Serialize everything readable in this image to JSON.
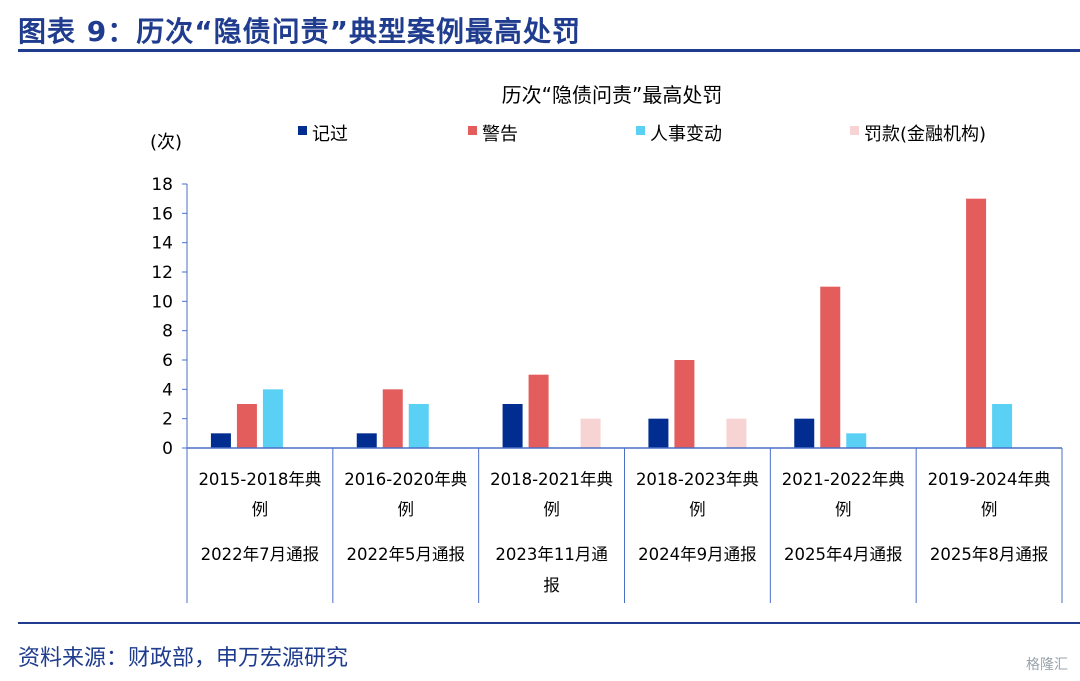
{
  "header": {
    "title": "图表 9：历次“隐债问责”典型案例最高处罚"
  },
  "footer": {
    "source": "资料来源：财政部，申万宏源研究",
    "watermark": "格隆汇"
  },
  "chart_data": {
    "type": "bar",
    "title": "历次“隐债问责”最高处罚",
    "ylabel": "(次)",
    "ylim": [
      0,
      18
    ],
    "yticks": [
      0,
      2,
      4,
      6,
      8,
      10,
      12,
      14,
      16,
      18
    ],
    "grid": false,
    "legend_position": "top",
    "categories": [
      [
        "2015-2018年典",
        "例",
        "2022年7月通报"
      ],
      [
        "2016-2020年典",
        "例",
        "2022年5月通报"
      ],
      [
        "2018-2021年典",
        "例",
        "2023年11月通",
        "报"
      ],
      [
        "2018-2023年典",
        "例",
        "2024年9月通报"
      ],
      [
        "2021-2022年典",
        "例",
        "2025年4月通报"
      ],
      [
        "2019-2024年典",
        "例",
        "2025年8月通报"
      ]
    ],
    "series": [
      {
        "name": "记过",
        "color": "#002d8f",
        "values": [
          1,
          1,
          3,
          2,
          2,
          0
        ]
      },
      {
        "name": "警告",
        "color": "#e35d5d",
        "values": [
          3,
          4,
          5,
          6,
          11,
          17
        ]
      },
      {
        "name": "人事变动",
        "color": "#5bd0f5",
        "values": [
          4,
          3,
          0,
          0,
          1,
          3
        ]
      },
      {
        "name": "罚款(金融机构)",
        "color": "#f8d3d3",
        "values": [
          0,
          0,
          2,
          2,
          0,
          0
        ]
      }
    ]
  }
}
